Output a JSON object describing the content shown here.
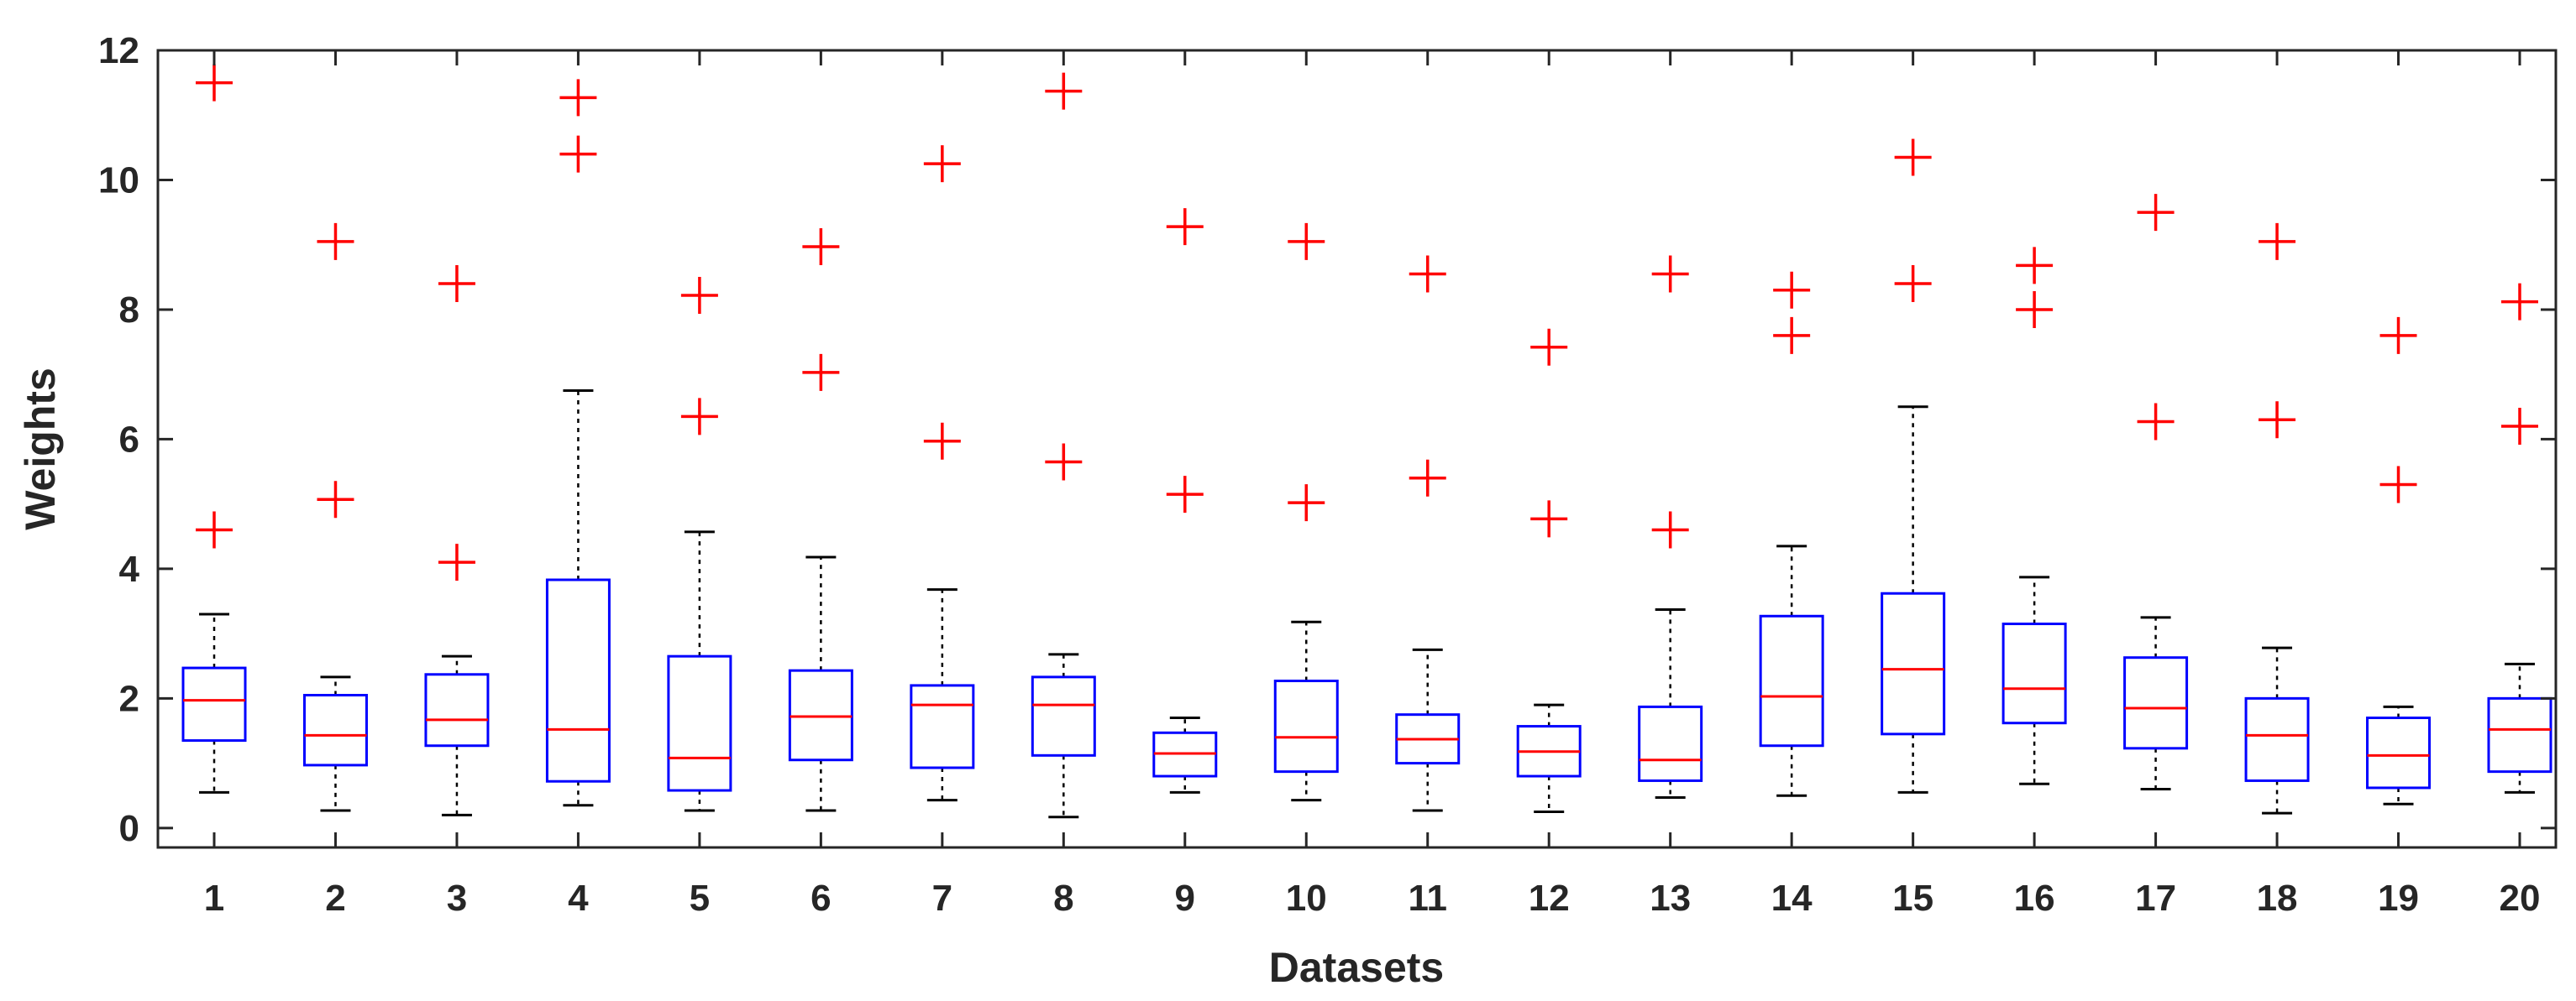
{
  "chart_data": {
    "type": "boxplot",
    "title": "",
    "xlabel": "Datasets",
    "ylabel": "Weights",
    "ylim": [
      -0.3,
      12
    ],
    "yticks": [
      0,
      2,
      4,
      6,
      8,
      10,
      12
    ],
    "grid": false,
    "colors": {
      "box": "#0000ff",
      "median": "#ff0000",
      "whisker": "#000000",
      "outlier": "#ff0000",
      "axis": "#262626"
    },
    "categories": [
      "1",
      "2",
      "3",
      "4",
      "5",
      "6",
      "7",
      "8",
      "9",
      "10",
      "11",
      "12",
      "13",
      "14",
      "15",
      "16",
      "17",
      "18",
      "19",
      "20"
    ],
    "boxes": [
      {
        "label": "1",
        "whisker_low": 0.55,
        "q1": 1.35,
        "median": 1.97,
        "q3": 2.47,
        "whisker_high": 3.3,
        "outliers": [
          4.6,
          11.5
        ]
      },
      {
        "label": "2",
        "whisker_low": 0.27,
        "q1": 0.97,
        "median": 1.43,
        "q3": 2.05,
        "whisker_high": 2.33,
        "outliers": [
          5.07,
          9.05
        ]
      },
      {
        "label": "3",
        "whisker_low": 0.2,
        "q1": 1.27,
        "median": 1.67,
        "q3": 2.37,
        "whisker_high": 2.65,
        "outliers": [
          4.1,
          8.4
        ]
      },
      {
        "label": "4",
        "whisker_low": 0.35,
        "q1": 0.72,
        "median": 1.52,
        "q3": 3.83,
        "whisker_high": 6.75,
        "outliers": [
          10.4,
          11.27
        ]
      },
      {
        "label": "5",
        "whisker_low": 0.27,
        "q1": 0.58,
        "median": 1.08,
        "q3": 2.65,
        "whisker_high": 4.57,
        "outliers": [
          6.35,
          8.22
        ]
      },
      {
        "label": "6",
        "whisker_low": 0.27,
        "q1": 1.05,
        "median": 1.72,
        "q3": 2.43,
        "whisker_high": 4.18,
        "outliers": [
          7.03,
          8.97
        ]
      },
      {
        "label": "7",
        "whisker_low": 0.43,
        "q1": 0.93,
        "median": 1.9,
        "q3": 2.2,
        "whisker_high": 3.68,
        "outliers": [
          5.97,
          10.25
        ]
      },
      {
        "label": "8",
        "whisker_low": 0.17,
        "q1": 1.12,
        "median": 1.9,
        "q3": 2.33,
        "whisker_high": 2.68,
        "outliers": [
          5.65,
          11.37
        ]
      },
      {
        "label": "9",
        "whisker_low": 0.55,
        "q1": 0.8,
        "median": 1.15,
        "q3": 1.47,
        "whisker_high": 1.7,
        "outliers": [
          5.15,
          9.28
        ]
      },
      {
        "label": "10",
        "whisker_low": 0.43,
        "q1": 0.87,
        "median": 1.4,
        "q3": 2.27,
        "whisker_high": 3.18,
        "outliers": [
          5.02,
          9.05
        ]
      },
      {
        "label": "11",
        "whisker_low": 0.27,
        "q1": 1.0,
        "median": 1.37,
        "q3": 1.75,
        "whisker_high": 2.75,
        "outliers": [
          5.4,
          8.55
        ]
      },
      {
        "label": "12",
        "whisker_low": 0.25,
        "q1": 0.8,
        "median": 1.18,
        "q3": 1.57,
        "whisker_high": 1.9,
        "outliers": [
          4.77,
          7.42
        ]
      },
      {
        "label": "13",
        "whisker_low": 0.47,
        "q1": 0.73,
        "median": 1.05,
        "q3": 1.87,
        "whisker_high": 3.37,
        "outliers": [
          4.6,
          8.55
        ]
      },
      {
        "label": "14",
        "whisker_low": 0.5,
        "q1": 1.27,
        "median": 2.03,
        "q3": 3.27,
        "whisker_high": 4.35,
        "outliers": [
          7.6,
          8.3
        ]
      },
      {
        "label": "15",
        "whisker_low": 0.55,
        "q1": 1.45,
        "median": 2.45,
        "q3": 3.62,
        "whisker_high": 6.5,
        "outliers": [
          8.4,
          10.35
        ]
      },
      {
        "label": "16",
        "whisker_low": 0.68,
        "q1": 1.62,
        "median": 2.15,
        "q3": 3.15,
        "whisker_high": 3.87,
        "outliers": [
          8.0,
          8.68
        ]
      },
      {
        "label": "17",
        "whisker_low": 0.6,
        "q1": 1.23,
        "median": 1.85,
        "q3": 2.63,
        "whisker_high": 3.25,
        "outliers": [
          6.27,
          9.5
        ]
      },
      {
        "label": "18",
        "whisker_low": 0.23,
        "q1": 0.73,
        "median": 1.43,
        "q3": 2.0,
        "whisker_high": 2.78,
        "outliers": [
          6.3,
          9.05
        ]
      },
      {
        "label": "19",
        "whisker_low": 0.37,
        "q1": 0.62,
        "median": 1.12,
        "q3": 1.7,
        "whisker_high": 1.87,
        "outliers": [
          5.3,
          7.6
        ]
      },
      {
        "label": "20",
        "whisker_low": 0.55,
        "q1": 0.87,
        "median": 1.52,
        "q3": 2.0,
        "whisker_high": 2.53,
        "outliers": [
          6.2,
          8.12
        ]
      }
    ]
  }
}
